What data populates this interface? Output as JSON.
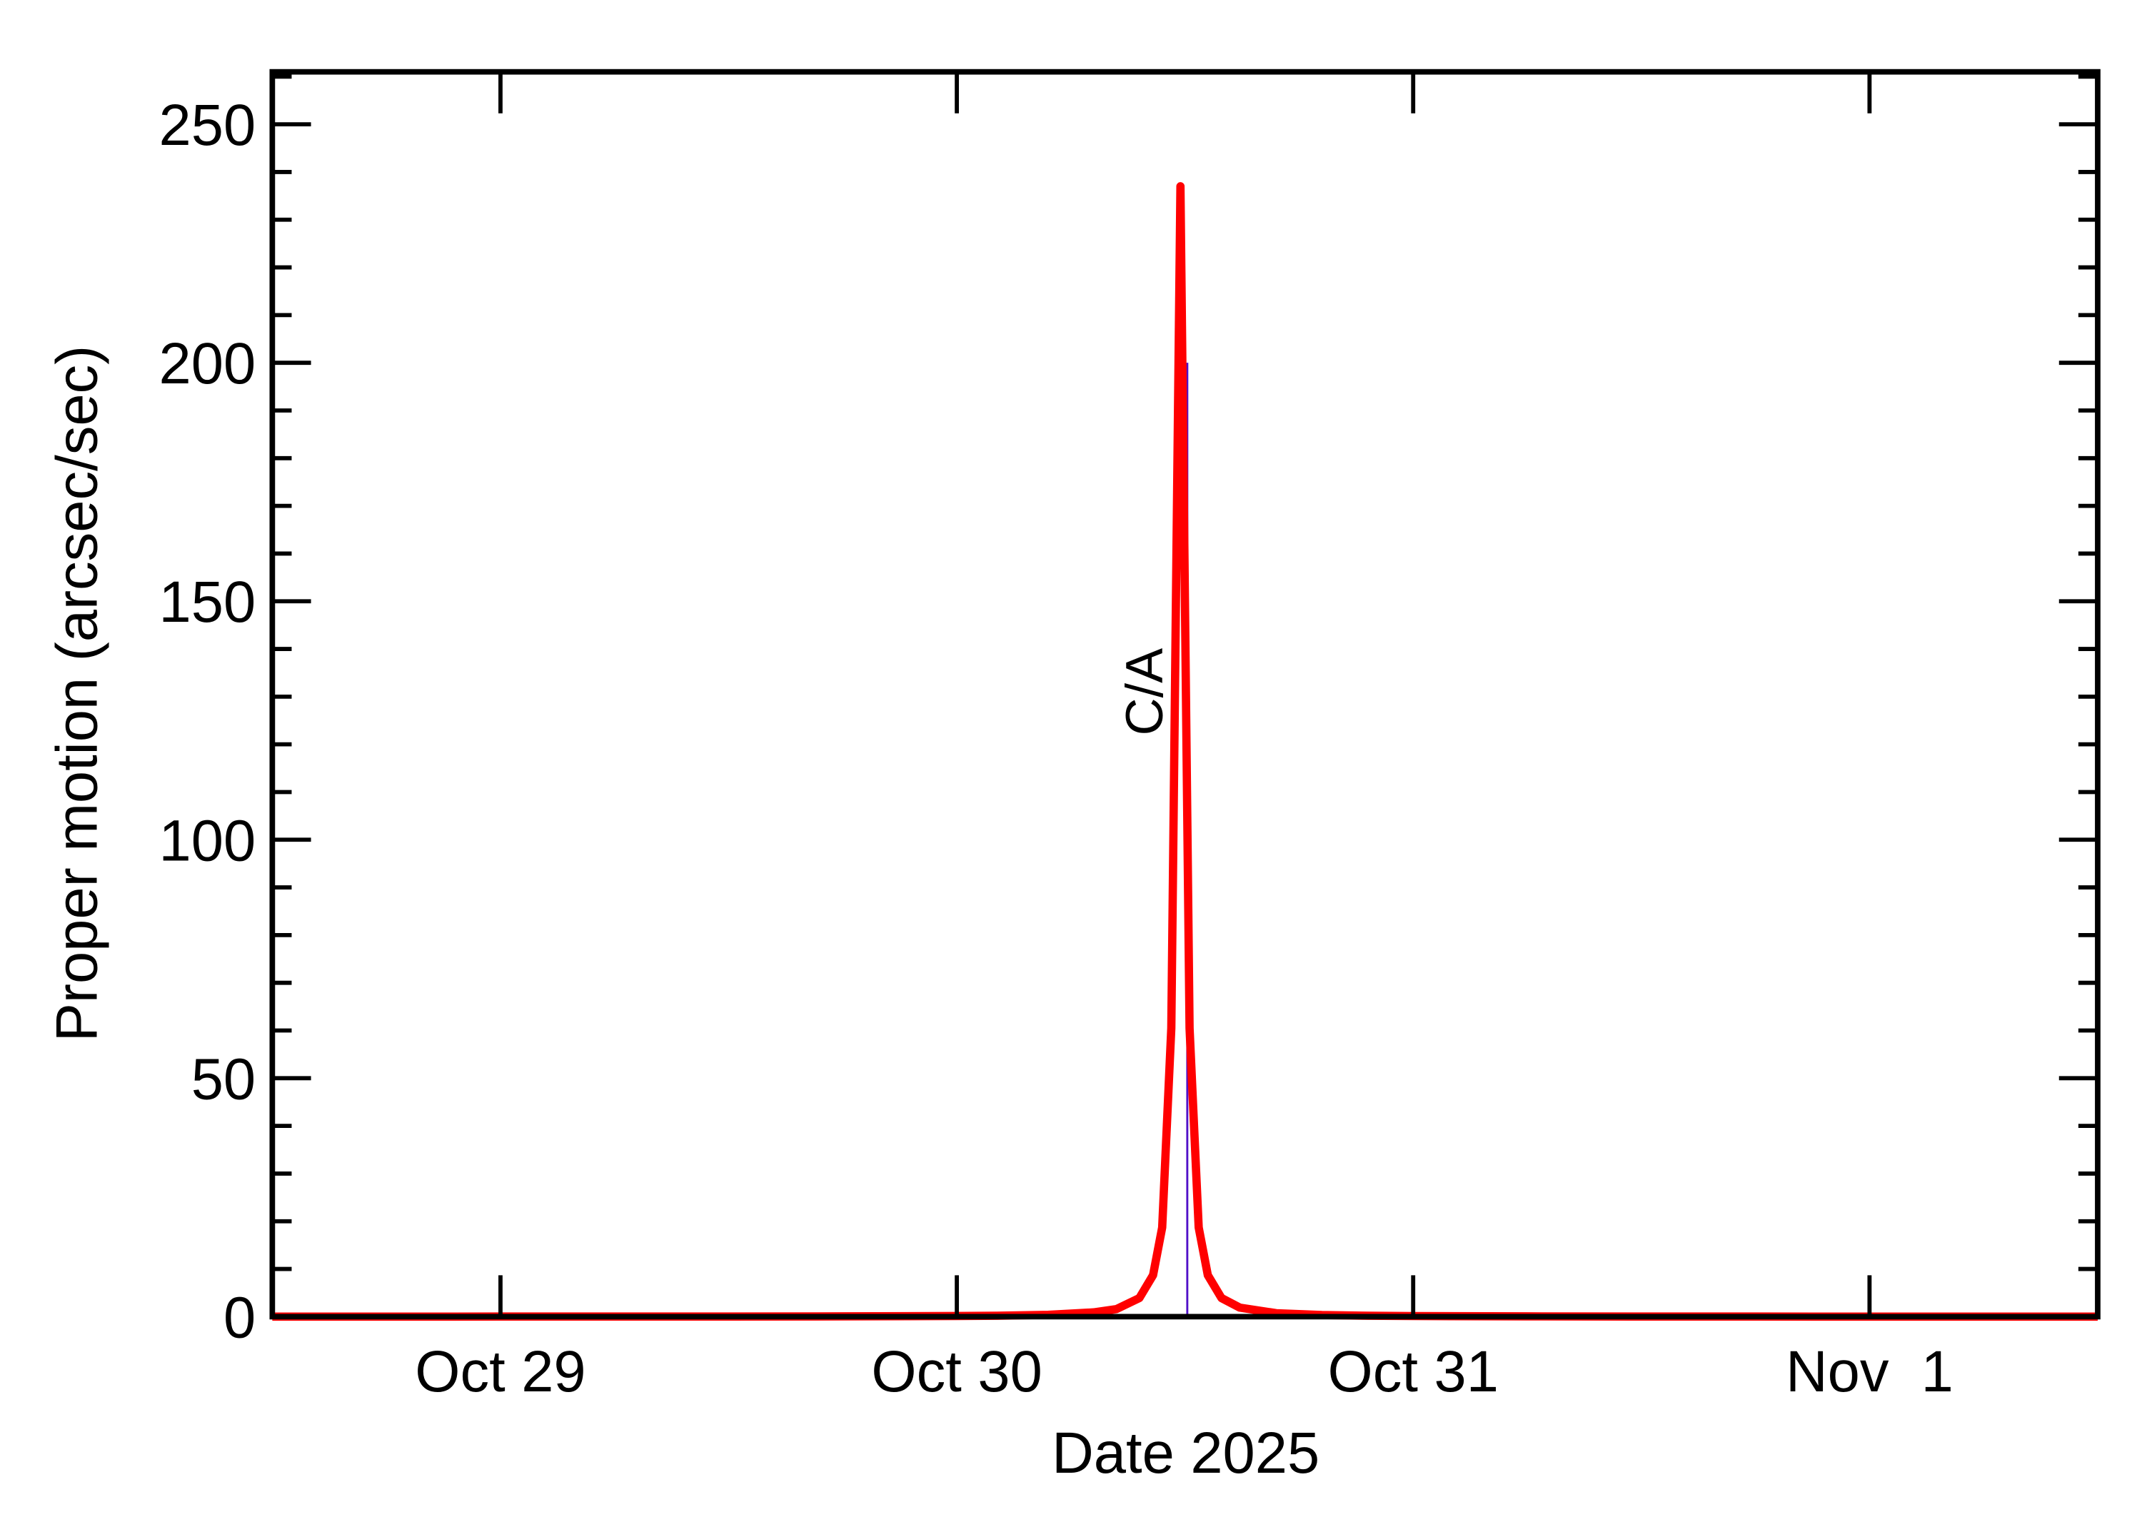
{
  "chart_data": {
    "type": "line",
    "xlabel": "Date 2025",
    "ylabel": "Proper motion (arcsec/sec)",
    "x": [
      28.5,
      28.75,
      29,
      29.25,
      29.5,
      29.75,
      30.0,
      30.1,
      30.2,
      30.3,
      30.35,
      30.4,
      30.43,
      30.45,
      30.47,
      30.49,
      30.51,
      30.53,
      30.55,
      30.58,
      30.62,
      30.7,
      30.8,
      30.9,
      31.0,
      31.25,
      31.5,
      31.75,
      32.0,
      32.25,
      32.5
    ],
    "series": [
      {
        "name": "Proper motion",
        "color": "#ff0000",
        "values": [
          0.01,
          0.01,
          0.02,
          0.02,
          0.03,
          0.06,
          0.14,
          0.21,
          0.39,
          0.9,
          1.6,
          3.9,
          8.7,
          18.7,
          60.5,
          237,
          60.5,
          18.7,
          8.7,
          3.9,
          1.9,
          0.73,
          0.34,
          0.19,
          0.13,
          0.06,
          0.03,
          0.02,
          0.01,
          0.01,
          0.01
        ]
      }
    ],
    "xlim": [
      28.5,
      32.5
    ],
    "xticks": [
      {
        "value": 29,
        "label": "Oct 29"
      },
      {
        "value": 30,
        "label": "Oct 30"
      },
      {
        "value": 31,
        "label": "Oct 31"
      },
      {
        "value": 32,
        "label": "Nov  1"
      }
    ],
    "ylim": [
      0,
      261
    ],
    "yticks": [
      0,
      50,
      100,
      150,
      200,
      250
    ],
    "yminorticks": [
      10,
      20,
      30,
      40,
      60,
      70,
      80,
      90,
      110,
      120,
      130,
      140,
      160,
      170,
      180,
      190,
      210,
      220,
      230,
      240,
      260
    ],
    "annotation": {
      "label": "C/A",
      "x": 30.505,
      "color": "#5010c8"
    }
  }
}
